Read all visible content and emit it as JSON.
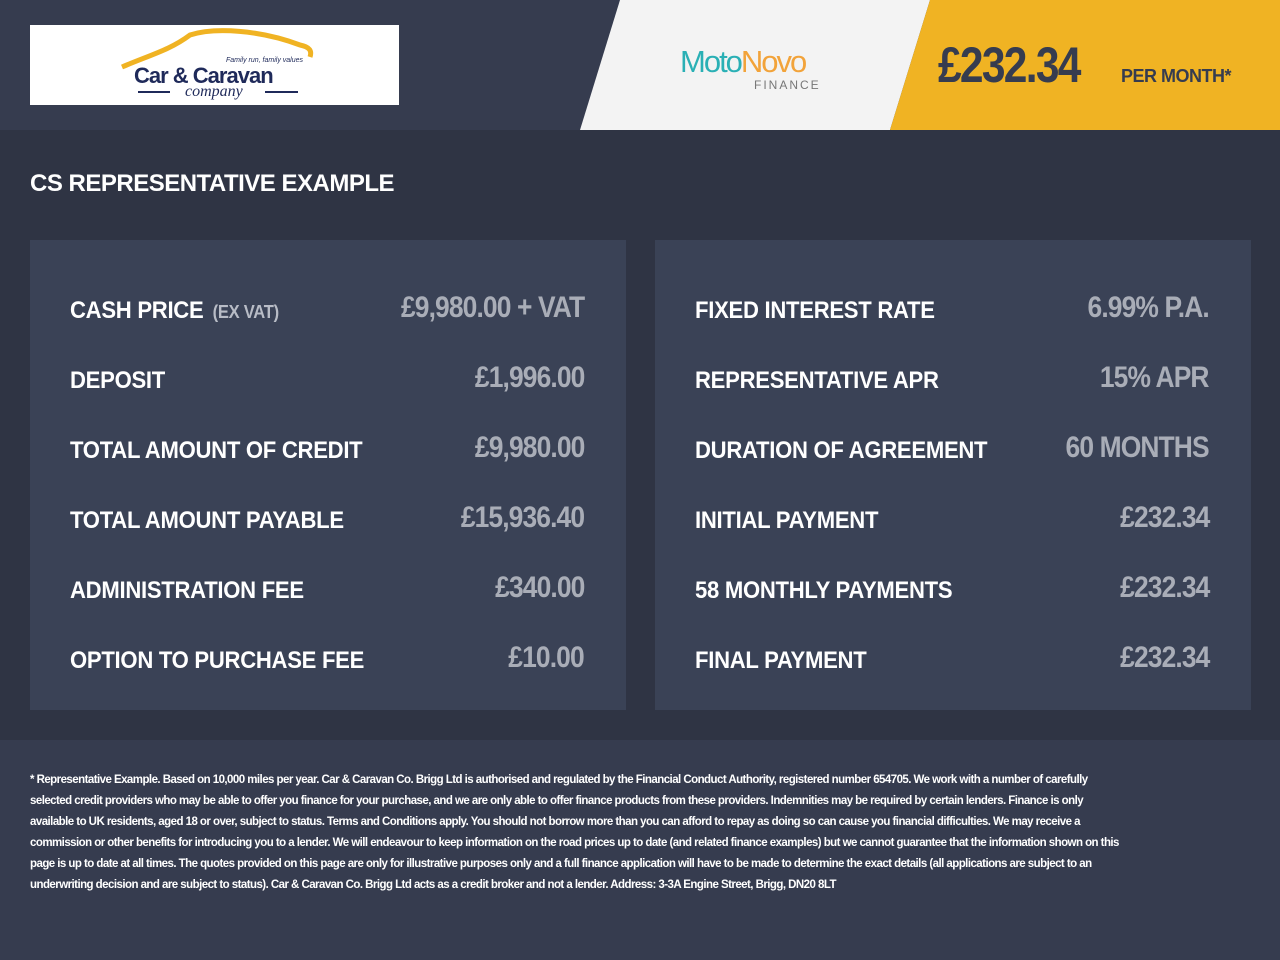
{
  "header": {
    "logo_text": "Car & Caravan",
    "logo_sub": "company",
    "logo_tagline": "Family run, family values",
    "lender_a": "Moto",
    "lender_b": "Novo",
    "lender_sub": "FINANCE",
    "price": "£232.34",
    "per_month": "PER MONTH*"
  },
  "title": "CS REPRESENTATIVE EXAMPLE",
  "left": [
    {
      "label": "CASH PRICE",
      "note": "(EX VAT)",
      "value": "£9,980.00 + VAT"
    },
    {
      "label": "DEPOSIT",
      "value": "£1,996.00"
    },
    {
      "label": "TOTAL AMOUNT OF CREDIT",
      "value": "£9,980.00"
    },
    {
      "label": "TOTAL AMOUNT PAYABLE",
      "value": "£15,936.40"
    },
    {
      "label": "ADMINISTRATION FEE",
      "value": "£340.00"
    },
    {
      "label": "OPTION TO PURCHASE FEE",
      "value": "£10.00"
    }
  ],
  "right": [
    {
      "label": "FIXED INTEREST RATE",
      "value": "6.99% P.A."
    },
    {
      "label": "REPRESENTATIVE APR",
      "value": "15% APR"
    },
    {
      "label": "DURATION OF AGREEMENT",
      "value": "60 MONTHS"
    },
    {
      "label": "INITIAL PAYMENT",
      "value": "£232.34"
    },
    {
      "label": "58 MONTHLY PAYMENTS",
      "value": "£232.34"
    },
    {
      "label": "FINAL PAYMENT",
      "value": "£232.34"
    }
  ],
  "footer": "* Representative Example. Based on 10,000 miles per year. Car & Caravan Co. Brigg Ltd is authorised and regulated by the Financial Conduct Authority, registered number  654705. We work with a number of carefully selected credit providers who may be able to offer you finance for your purchase, and we are only able to offer finance products from these providers. Indemnities may be required by certain lenders. Finance is only available to UK residents, aged 18 or over, subject to status. Terms and Conditions apply. You should not borrow more than you can afford to repay as doing so can cause you financial difficulties. We may receive a commission or other benefits for introducing you to a lender. We will endeavour to keep information on the road prices up to date (and related finance examples) but we cannot guarantee that the information shown on this page is up to date at all times. The quotes provided on this page are only for illustrative purposes only and a full finance application will have to be made to determine the exact details (all applications are subject to an underwriting decision and are subject to status). Car & Caravan Co. Brigg Ltd acts as a credit broker and not a lender. Address: 3-3A Engine Street, Brigg, DN20 8LT"
}
